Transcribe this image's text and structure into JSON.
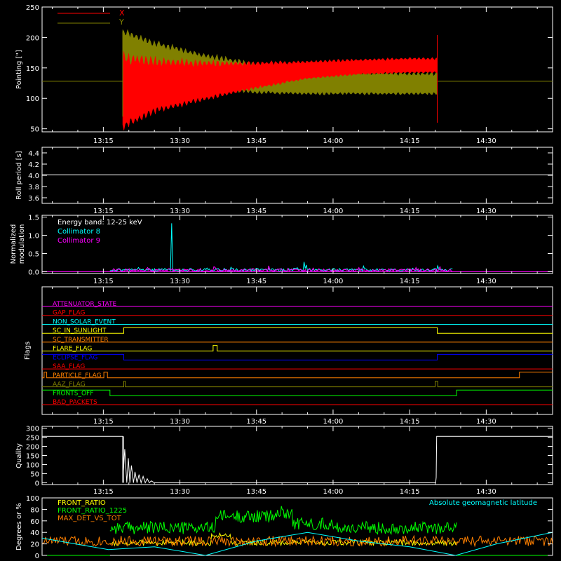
{
  "time_axis": {
    "ticks": [
      "13:15",
      "13:30",
      "13:45",
      "14:00",
      "14:15",
      "14:30"
    ],
    "tick_minutes_after_1300": [
      15,
      30,
      45,
      60,
      75,
      90
    ],
    "range_minutes_after_1300": [
      3,
      103
    ]
  },
  "chart_data": [
    {
      "id": "pointing",
      "type": "area",
      "ylabel": "Pointing [\"]",
      "yticks": [
        "50",
        "100",
        "150",
        "200",
        "250"
      ],
      "ylim": [
        45,
        250
      ],
      "baseline": 128,
      "start_minute": 18.8,
      "end_minute": 80.4,
      "legend": [
        {
          "name": "X",
          "color": "#ff0000"
        },
        {
          "name": "Y",
          "color": "#808000"
        }
      ],
      "series": [
        {
          "name": "X",
          "color": "#ff0000",
          "envelope_time": [
            18.8,
            25,
            35,
            45,
            55,
            65,
            75,
            80.4
          ],
          "upper": [
            165,
            160,
            157,
            157,
            160,
            163,
            165,
            165
          ],
          "lower": [
            55,
            80,
            100,
            118,
            133,
            140,
            143,
            143
          ]
        },
        {
          "name": "Y",
          "color": "#808000",
          "envelope_time": [
            18.8,
            25,
            35,
            45,
            55,
            65,
            75,
            80.4
          ],
          "upper": [
            210,
            190,
            170,
            155,
            145,
            142,
            140,
            140
          ],
          "lower": [
            150,
            130,
            118,
            110,
            108,
            108,
            108,
            108
          ]
        }
      ]
    },
    {
      "id": "roll",
      "type": "line",
      "ylabel": "Roll period [s]",
      "yticks": [
        "3.6",
        "3.8",
        "4.0",
        "4.2",
        "4.4"
      ],
      "ylim": [
        3.5,
        4.5
      ],
      "color": "#ffffff",
      "x": [
        3,
        103
      ],
      "y": [
        4.01,
        4.01
      ]
    },
    {
      "id": "modulation",
      "type": "line",
      "ylabel": "Normalized modulation",
      "yticks": [
        "0.0",
        "0.5",
        "1.0",
        "1.5"
      ],
      "ylim": [
        -0.05,
        1.55
      ],
      "start_minute": 16.3,
      "end_minute": 83.4,
      "annotation": "Energy band: 12-25 keV",
      "series": [
        {
          "name": "Collimator 8",
          "color": "#00ffff",
          "base": 0.05,
          "spikes": [
            [
              28.4,
              1.33
            ],
            [
              54.4,
              0.27
            ]
          ]
        },
        {
          "name": "Collimator 9",
          "color": "#ff00ff",
          "base": 0.04,
          "spikes": []
        }
      ]
    },
    {
      "id": "flags",
      "type": "line",
      "ylabel": "Flags",
      "flags": [
        {
          "name": "ATTENUATOR_STATE",
          "color": "#ff00ff",
          "steps": [
            [
              3,
              0
            ]
          ]
        },
        {
          "name": "GAP_FLAG",
          "color": "#ff0000",
          "steps": [
            [
              3,
              0
            ]
          ]
        },
        {
          "name": "NON_SOLAR_EVENT",
          "color": "#00ffff",
          "steps": [
            [
              3,
              0
            ]
          ]
        },
        {
          "name": "SC_IN_SUNLIGHT",
          "color": "#ffff00",
          "steps": [
            [
              3,
              0
            ],
            [
              19,
              1
            ],
            [
              80.4,
              0
            ]
          ]
        },
        {
          "name": "SC_TRANSMITTER",
          "color": "#ff8000",
          "steps": [
            [
              3,
              0
            ]
          ]
        },
        {
          "name": "FLARE_FLAG",
          "color": "#ffff00",
          "steps": [
            [
              3,
              0
            ],
            [
              36.5,
              1
            ],
            [
              37.3,
              0
            ]
          ]
        },
        {
          "name": "ECLIPSE_FLAG",
          "color": "#0000ff",
          "steps": [
            [
              3,
              1
            ],
            [
              19,
              0
            ],
            [
              80.4,
              1
            ]
          ]
        },
        {
          "name": "SAA_FLAG",
          "color": "#ff0000",
          "steps": [
            [
              3,
              0
            ]
          ]
        },
        {
          "name": "PARTICLE_FLAG",
          "color": "#ff8000",
          "steps": [
            [
              3,
              0
            ],
            [
              3.4,
              1
            ],
            [
              3.9,
              0
            ],
            [
              15.1,
              1
            ],
            [
              15.8,
              0
            ],
            [
              96.5,
              1
            ]
          ]
        },
        {
          "name": "AAZ_FLAG",
          "color": "#808000",
          "steps": [
            [
              3,
              0
            ],
            [
              19,
              1
            ],
            [
              19.3,
              0
            ],
            [
              80,
              1
            ],
            [
              80.5,
              0
            ]
          ]
        },
        {
          "name": "FRONTS_OFF",
          "color": "#00ff00",
          "steps": [
            [
              3,
              1
            ],
            [
              16.3,
              0
            ],
            [
              84.2,
              1
            ]
          ]
        },
        {
          "name": "BAD_PACKETS",
          "color": "#ff0000",
          "steps": [
            [
              3,
              0
            ]
          ]
        }
      ]
    },
    {
      "id": "quality",
      "type": "line",
      "ylabel": "Quality",
      "yticks": [
        "0",
        "50",
        "100",
        "150",
        "200",
        "250",
        "300"
      ],
      "ylim": [
        -10,
        310
      ],
      "color": "#ffffff",
      "x": [
        3,
        18.8,
        18.8,
        19.2,
        19.6,
        19.9,
        20.2,
        20.5,
        20.9,
        21.2,
        21.6,
        22.0,
        22.4,
        22.8,
        23.2,
        23.6,
        24.0,
        24.4,
        25.0,
        80.1,
        80.2,
        80.3,
        103
      ],
      "y": [
        255,
        255,
        0,
        185,
        0,
        135,
        0,
        95,
        0,
        60,
        0,
        45,
        0,
        35,
        0,
        22,
        0,
        10,
        0,
        0,
        30,
        255,
        255
      ]
    },
    {
      "id": "ratios",
      "type": "line",
      "ylabel": "Degrees or %",
      "yticks": [
        "0",
        "20",
        "40",
        "60",
        "80",
        "100"
      ],
      "ylim": [
        0,
        100
      ],
      "note": "Absolute geomagnetic latitude",
      "note_color": "#00ffff",
      "series": [
        {
          "name": "FRONT_RATIO",
          "color": "#ffff00"
        },
        {
          "name": "FRONT_RATIO_1225",
          "color": "#00ff00"
        },
        {
          "name": "MAX_DET_VS_TOT",
          "color": "#ff8000"
        },
        {
          "name": "Absolute geomagnetic latitude",
          "color": "#00ffff",
          "x": [
            3,
            16,
            25,
            35,
            45,
            55,
            65,
            75,
            84,
            92,
            103
          ],
          "y": [
            30,
            10,
            15,
            0,
            25,
            40,
            25,
            15,
            0,
            20,
            40
          ]
        }
      ]
    }
  ]
}
